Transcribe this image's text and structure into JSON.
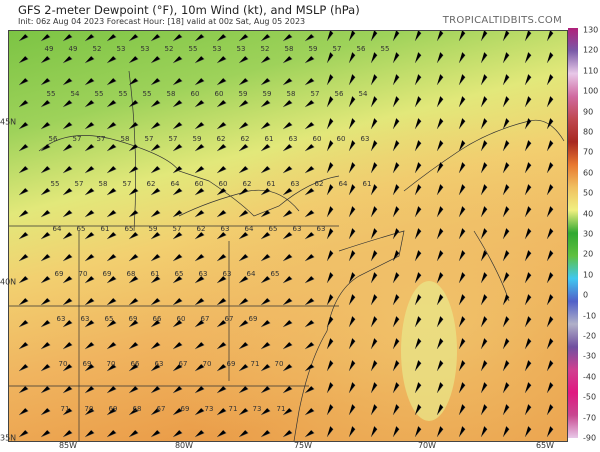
{
  "header": {
    "title": "GFS 2-meter Dewpoint (°F), 10m Wind (kt), and MSLP (hPa)",
    "subtitle": "Init: 06z Aug 04 2023   Forecast Hour: [18]   valid at 00z Sat, Aug 05 2023",
    "brand": "TROPICALTIDBITS.COM"
  },
  "axes": {
    "longitudes": [
      "85W",
      "80W",
      "75W",
      "70W",
      "65W"
    ],
    "latitudes": [
      "45N",
      "40N",
      "35N"
    ]
  },
  "colorbar": {
    "labels": [
      "130",
      "120",
      "110",
      "100",
      "90",
      "80",
      "70",
      "60",
      "50",
      "40",
      "30",
      "20",
      "10",
      "0",
      "-10",
      "-20",
      "-30",
      "-40",
      "-50",
      "-70",
      "-90"
    ],
    "colors": [
      "#b0207a",
      "#7a5aa8",
      "#e8c8e8",
      "#d06aa0",
      "#c04850",
      "#a82820",
      "#e87830",
      "#f0c060",
      "#f0f080",
      "#30a830",
      "#60c040",
      "#40c8f0",
      "#5060c8",
      "#b0b0c8",
      "#7050a0",
      "#d04090",
      "#e01880",
      "#c84890",
      "#e8c8e8"
    ]
  },
  "dewpoint_rows": [
    [
      "49",
      "49",
      "52",
      "53",
      "53",
      "52",
      "55",
      "53",
      "53",
      "52",
      "58",
      "59",
      "57",
      "56",
      "55"
    ],
    [
      "55",
      "54",
      "55",
      "55",
      "55",
      "58",
      "60",
      "60",
      "59",
      "59",
      "58",
      "57",
      "56",
      "54"
    ],
    [
      "56",
      "57",
      "57",
      "58",
      "57",
      "57",
      "59",
      "62",
      "62",
      "61",
      "63",
      "60",
      "60",
      "63"
    ],
    [
      "55",
      "57",
      "58",
      "57",
      "62",
      "64",
      "60",
      "60",
      "62",
      "61",
      "63",
      "62",
      "64",
      "61"
    ],
    [
      "64",
      "65",
      "61",
      "65",
      "59",
      "57",
      "62",
      "63",
      "64",
      "65",
      "63",
      "63"
    ],
    [
      "69",
      "70",
      "69",
      "68",
      "61",
      "65",
      "63",
      "63",
      "64",
      "65"
    ],
    [
      "63",
      "63",
      "65",
      "69",
      "66",
      "60",
      "67",
      "67",
      "69"
    ],
    [
      "70",
      "69",
      "70",
      "66",
      "63",
      "67",
      "70",
      "69",
      "71",
      "70"
    ],
    [
      "71",
      "70",
      "69",
      "68",
      "67",
      "69",
      "73",
      "71",
      "73",
      "71"
    ]
  ]
}
